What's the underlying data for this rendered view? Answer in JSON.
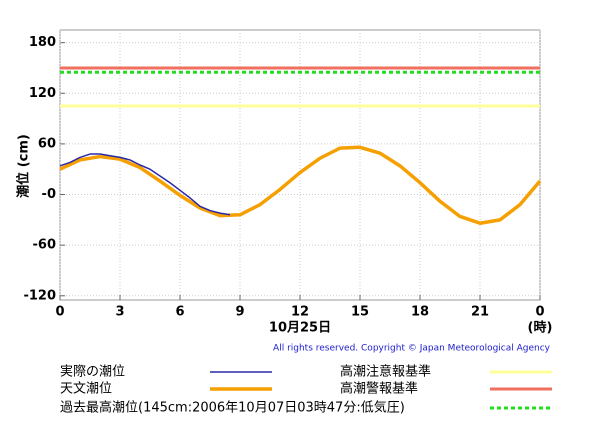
{
  "chart_data": {
    "type": "line",
    "ylabel": "潮位 (cm)",
    "xlabel": "10月25日",
    "xunit": "(時)",
    "copyright": "All rights reserved. Copyright © Japan Meteorological Agency",
    "xlim": [
      0,
      24
    ],
    "xticks": [
      0,
      3,
      6,
      9,
      12,
      15,
      18,
      21,
      {
        "value": 24,
        "label": "0"
      }
    ],
    "ylim": [
      -125,
      195
    ],
    "yticks": [
      -120,
      -60,
      {
        "value": 0,
        "label": "-0"
      },
      60,
      120,
      180
    ],
    "grid": true,
    "series": [
      {
        "name": "実際の潮位",
        "color": "#2a2aa8",
        "width": 1.5,
        "x": [
          0,
          0.5,
          1,
          1.5,
          2,
          2.5,
          3,
          3.5,
          4,
          4.5,
          5,
          5.5,
          6,
          6.5,
          7,
          7.5,
          8,
          8.5
        ],
        "values": [
          34,
          38,
          44,
          48,
          48,
          46,
          44,
          41,
          35,
          30,
          22,
          14,
          5,
          -4,
          -14,
          -19,
          -22,
          -24
        ]
      },
      {
        "name": "天文潮位",
        "color": "#f5a000",
        "width": 3.5,
        "x": [
          0,
          1,
          2,
          3,
          4,
          5,
          6,
          7,
          8,
          9,
          10,
          11,
          12,
          13,
          14,
          15,
          16,
          17,
          18,
          19,
          20,
          21,
          22,
          23,
          24
        ],
        "values": [
          30,
          41,
          45,
          42,
          32,
          16,
          -1,
          -16,
          -25,
          -24,
          -12,
          6,
          26,
          43,
          55,
          56,
          49,
          34,
          14,
          -8,
          -26,
          -34,
          -30,
          -12,
          16
        ]
      }
    ],
    "reference_lines": [
      {
        "name": "高潮注意報基準",
        "color": "#ffff99",
        "value": 105,
        "dashed": false
      },
      {
        "name": "高潮警報基準",
        "color": "#f07060",
        "value": 150,
        "dashed": false
      },
      {
        "name": "過去最高潮位(145cm:2006年10月07日03時47分:低気圧)",
        "color": "#22dd22",
        "value": 145,
        "dashed": true
      }
    ]
  }
}
